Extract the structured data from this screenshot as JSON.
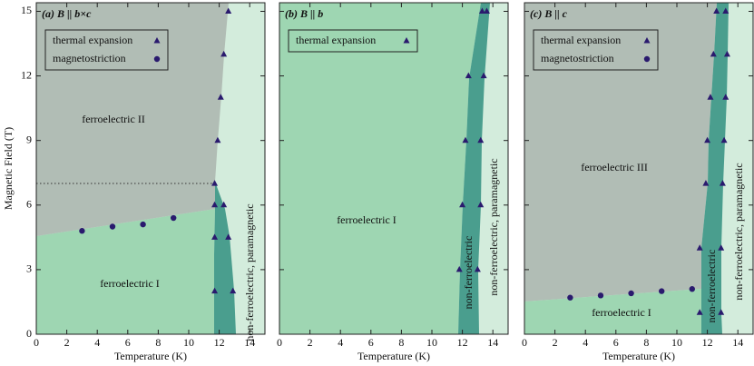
{
  "chart_data": [
    {
      "type": "scatter",
      "title": "(a) B || b×c",
      "xlabel": "Temperature (K)",
      "ylabel": "Magnetic Field (T)",
      "xlim": [
        0,
        15
      ],
      "ylim": [
        0,
        15.4
      ],
      "xticks": [
        0,
        2,
        4,
        6,
        8,
        10,
        12,
        14
      ],
      "yticks": [
        0,
        3,
        6,
        9,
        12,
        15
      ],
      "ytick_labels": true,
      "series": [
        {
          "name": "thermal expansion",
          "color": "#2a1a6e",
          "marker": "triangle",
          "x": [
            12.6,
            12.3,
            12.1,
            11.9,
            11.7,
            11.7,
            12.3,
            11.7,
            12.6,
            11.7,
            12.9
          ],
          "values": [
            15,
            13,
            11,
            9,
            7,
            6,
            6,
            4.5,
            4.5,
            2,
            2
          ]
        },
        {
          "name": "magnetostriction",
          "color": "#2a1a6e",
          "marker": "circle",
          "x": [
            3,
            5,
            7,
            9
          ],
          "values": [
            4.8,
            5.0,
            5.1,
            5.4
          ]
        }
      ],
      "annotations": [
        "ferroelectric II",
        "ferroelectric I",
        "non-ferroelectric, paramagnetic"
      ]
    },
    {
      "type": "scatter",
      "title": "(b) B || b",
      "xlabel": "Temperature (K)",
      "xlim": [
        0,
        15
      ],
      "ylim": [
        0,
        15.4
      ],
      "xticks": [
        0,
        2,
        4,
        6,
        8,
        10,
        12,
        14
      ],
      "yticks": [
        0,
        3,
        6,
        9,
        12,
        15
      ],
      "ytick_labels": false,
      "series": [
        {
          "name": "thermal expansion",
          "color": "#2a1a6e",
          "marker": "triangle",
          "x": [
            13.3,
            13.6,
            12.4,
            13.4,
            12.2,
            13.2,
            12.0,
            13.2,
            11.8,
            13.0
          ],
          "values": [
            15,
            15,
            12,
            12,
            9,
            9,
            6,
            6,
            3,
            3
          ]
        }
      ],
      "annotations": [
        "ferroelectric I",
        "non-ferroelectric",
        "non-ferroelectric, paramagnetic"
      ]
    },
    {
      "type": "scatter",
      "title": "(c) B || c",
      "xlabel": "Temperature (K)",
      "xlim": [
        0,
        15
      ],
      "ylim": [
        0,
        15.4
      ],
      "xticks": [
        0,
        2,
        4,
        6,
        8,
        10,
        12,
        14
      ],
      "yticks": [
        0,
        3,
        6,
        9,
        12,
        15
      ],
      "ytick_labels": false,
      "series": [
        {
          "name": "thermal expansion",
          "color": "#2a1a6e",
          "marker": "triangle",
          "x": [
            12.6,
            13.2,
            12.4,
            13.3,
            12.2,
            13.2,
            12.0,
            13.1,
            11.9,
            13.0,
            11.5,
            12.9,
            11.5,
            12.9
          ],
          "values": [
            15,
            15,
            13,
            13,
            11,
            11,
            9,
            9,
            7,
            7,
            4,
            4,
            1,
            1
          ]
        },
        {
          "name": "magnetostriction",
          "color": "#2a1a6e",
          "marker": "circle",
          "x": [
            3,
            5,
            7,
            9,
            11
          ],
          "values": [
            1.7,
            1.8,
            1.9,
            2.0,
            2.1
          ]
        }
      ],
      "annotations": [
        "ferroelectric III",
        "ferroelectric I",
        "non-ferroelectric",
        "non-ferroelectric, paramagnetic"
      ]
    }
  ]
}
